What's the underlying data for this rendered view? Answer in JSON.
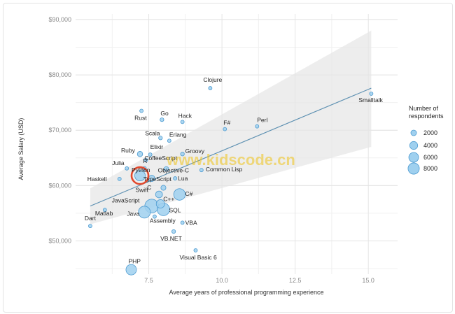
{
  "chart_data": {
    "type": "scatter",
    "title": "",
    "xlabel": "Average years of professional programming experience",
    "ylabel": "Average Salary (USD)",
    "xlim": [
      5.0,
      16.0
    ],
    "ylim": [
      44000,
      91000
    ],
    "x_ticks": [
      7.5,
      10.0,
      12.5,
      15.0
    ],
    "x_tick_labels": [
      "7.5",
      "10.0",
      "12.5",
      "15.0"
    ],
    "y_ticks": [
      50000,
      60000,
      70000,
      80000,
      90000
    ],
    "y_tick_labels": [
      "$50,000",
      "$60,000",
      "$70,000",
      "$80,000",
      "$90,000"
    ],
    "grid": true,
    "legend": {
      "title": "Number of respondents",
      "placement": "right",
      "entries": [
        {
          "label": "2000",
          "value": 2000
        },
        {
          "label": "4000",
          "value": 4000
        },
        {
          "label": "6000",
          "value": 6000
        },
        {
          "label": "8000",
          "value": 8000
        }
      ]
    },
    "trend": {
      "x": [
        5.5,
        15.1
      ],
      "y": [
        56300,
        77600
      ],
      "band_upper": [
        59500,
        88000
      ],
      "band_lower": [
        53000,
        67000
      ]
    },
    "highlighted": "Python",
    "watermark": "www.kidscode.cn",
    "points": [
      {
        "name": "Clojure",
        "x": 9.6,
        "y": 77600,
        "size": 300
      },
      {
        "name": "Smalltalk",
        "x": 15.1,
        "y": 76600,
        "size": 200
      },
      {
        "name": "Rust",
        "x": 7.25,
        "y": 73500,
        "size": 300
      },
      {
        "name": "Go",
        "x": 7.95,
        "y": 71900,
        "size": 900
      },
      {
        "name": "Hack",
        "x": 8.65,
        "y": 71500,
        "size": 150
      },
      {
        "name": "F#",
        "x": 10.1,
        "y": 70200,
        "size": 400
      },
      {
        "name": "Perl",
        "x": 11.2,
        "y": 70700,
        "size": 700
      },
      {
        "name": "Scala",
        "x": 7.9,
        "y": 68600,
        "size": 900
      },
      {
        "name": "Erlang",
        "x": 8.2,
        "y": 68100,
        "size": 300
      },
      {
        "name": "Groovy",
        "x": 8.65,
        "y": 65700,
        "size": 900
      },
      {
        "name": "Ruby",
        "x": 7.2,
        "y": 65700,
        "size": 1800
      },
      {
        "name": "Elixir",
        "x": 7.55,
        "y": 65600,
        "size": 400
      },
      {
        "name": "CoffeeScript",
        "x": 7.4,
        "y": 64600,
        "size": 300
      },
      {
        "name": "Julia",
        "x": 6.75,
        "y": 63100,
        "size": 150
      },
      {
        "name": "R",
        "x": 7.35,
        "y": 63100,
        "size": 1000
      },
      {
        "name": "Objective-C",
        "x": 8.1,
        "y": 63000,
        "size": 1400
      },
      {
        "name": "Common Lisp",
        "x": 9.3,
        "y": 62800,
        "size": 150
      },
      {
        "name": "Python",
        "x": 7.2,
        "y": 61800,
        "size": 7000
      },
      {
        "name": "Haskell",
        "x": 6.5,
        "y": 61200,
        "size": 300
      },
      {
        "name": "TypeScript",
        "x": 7.6,
        "y": 61300,
        "size": 2500
      },
      {
        "name": "Lua",
        "x": 8.4,
        "y": 61300,
        "size": 600
      },
      {
        "name": "Swift",
        "x": 8.0,
        "y": 59600,
        "size": 1600
      },
      {
        "name": "C#",
        "x": 8.55,
        "y": 58400,
        "size": 8500
      },
      {
        "name": "C",
        "x": 7.85,
        "y": 58400,
        "size": 3000
      },
      {
        "name": "C++",
        "x": 7.9,
        "y": 56700,
        "size": 4500
      },
      {
        "name": "JavaScript",
        "x": 7.6,
        "y": 56300,
        "size": 12000
      },
      {
        "name": "SQL",
        "x": 8.0,
        "y": 55700,
        "size": 10000
      },
      {
        "name": "Java",
        "x": 7.35,
        "y": 55200,
        "size": 9000
      },
      {
        "name": "Matlab",
        "x": 6.0,
        "y": 55600,
        "size": 300
      },
      {
        "name": "Assembly",
        "x": 7.7,
        "y": 54400,
        "size": 300
      },
      {
        "name": "VBA",
        "x": 8.65,
        "y": 53300,
        "size": 400
      },
      {
        "name": "Dart",
        "x": 5.5,
        "y": 52700,
        "size": 100
      },
      {
        "name": "VB.NET",
        "x": 8.35,
        "y": 51700,
        "size": 900
      },
      {
        "name": "Visual Basic 6",
        "x": 9.1,
        "y": 48300,
        "size": 150
      },
      {
        "name": "PHP",
        "x": 6.9,
        "y": 44800,
        "size": 7000
      }
    ]
  }
}
